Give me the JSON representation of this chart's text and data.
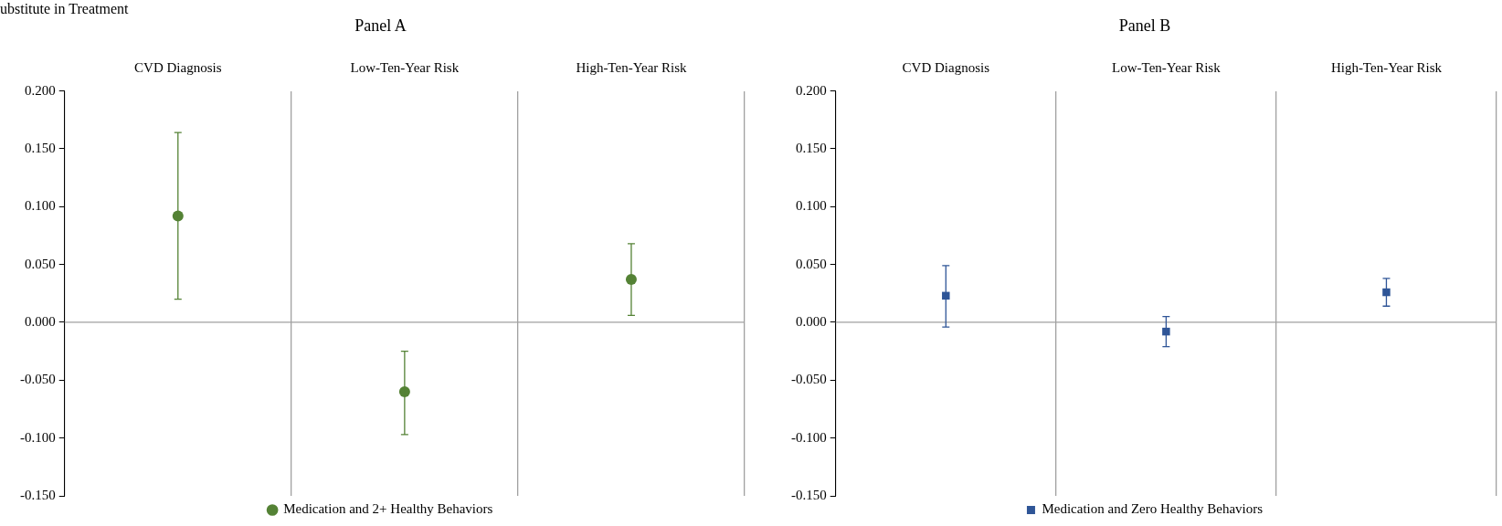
{
  "chart_data": [
    {
      "type": "scatter",
      "title": "Panel A",
      "annotations": [
        "ubstitute in Treatment"
      ],
      "categories": [
        "CVD Diagnosis",
        "Low-Ten-Year Risk",
        "High-Ten-Year Risk"
      ],
      "marker": "circle",
      "legend": "bottom",
      "grid": "x",
      "series": [
        {
          "name": "Medication and 2+ Healthy Behaviors",
          "color": "#548235",
          "values": [
            0.092,
            -0.06,
            0.037
          ],
          "errors": [
            [
              0.02,
              0.164
            ],
            [
              -0.097,
              -0.025
            ],
            [
              0.006,
              0.068
            ]
          ]
        }
      ],
      "ylim": [
        -0.15,
        0.2
      ],
      "yticks": [
        {
          "value": -0.15,
          "label": "-0.150"
        },
        {
          "value": -0.1,
          "label": "-0.100"
        },
        {
          "value": -0.05,
          "label": "-0.050"
        },
        {
          "value": 0,
          "label": "0.000"
        },
        {
          "value": 0.05,
          "label": "0.050"
        },
        {
          "value": 0.1,
          "label": "0.100"
        },
        {
          "value": 0.15,
          "label": "0.150"
        },
        {
          "value": 0.2,
          "label": "0.200"
        }
      ],
      "ref_lines": [
        {
          "axis": "y",
          "value": 0,
          "color": "#a0a0a0"
        }
      ]
    },
    {
      "type": "scatter",
      "title": "Panel B",
      "categories": [
        "CVD Diagnosis",
        "Low-Ten-Year Risk",
        "High-Ten-Year Risk"
      ],
      "marker": "square",
      "legend": "bottom",
      "grid": "x",
      "series": [
        {
          "name": "Medication and Zero Healthy Behaviors",
          "color": "#2f5597",
          "values": [
            0.023,
            -0.008,
            0.026
          ],
          "errors": [
            [
              -0.004,
              0.049
            ],
            [
              -0.021,
              0.005
            ],
            [
              0.014,
              0.038
            ]
          ]
        }
      ],
      "ylim": [
        -0.15,
        0.2
      ],
      "yticks": [
        {
          "value": -0.15,
          "label": "-0.150"
        },
        {
          "value": -0.1,
          "label": "-0.100"
        },
        {
          "value": -0.05,
          "label": "-0.050"
        },
        {
          "value": 0,
          "label": "0.000"
        },
        {
          "value": 0.05,
          "label": "0.050"
        },
        {
          "value": 0.1,
          "label": "0.100"
        },
        {
          "value": 0.15,
          "label": "0.150"
        },
        {
          "value": 0.2,
          "label": "0.200"
        }
      ],
      "ref_lines": [
        {
          "axis": "y",
          "value": 0,
          "color": "#a0a0a0"
        }
      ]
    }
  ]
}
